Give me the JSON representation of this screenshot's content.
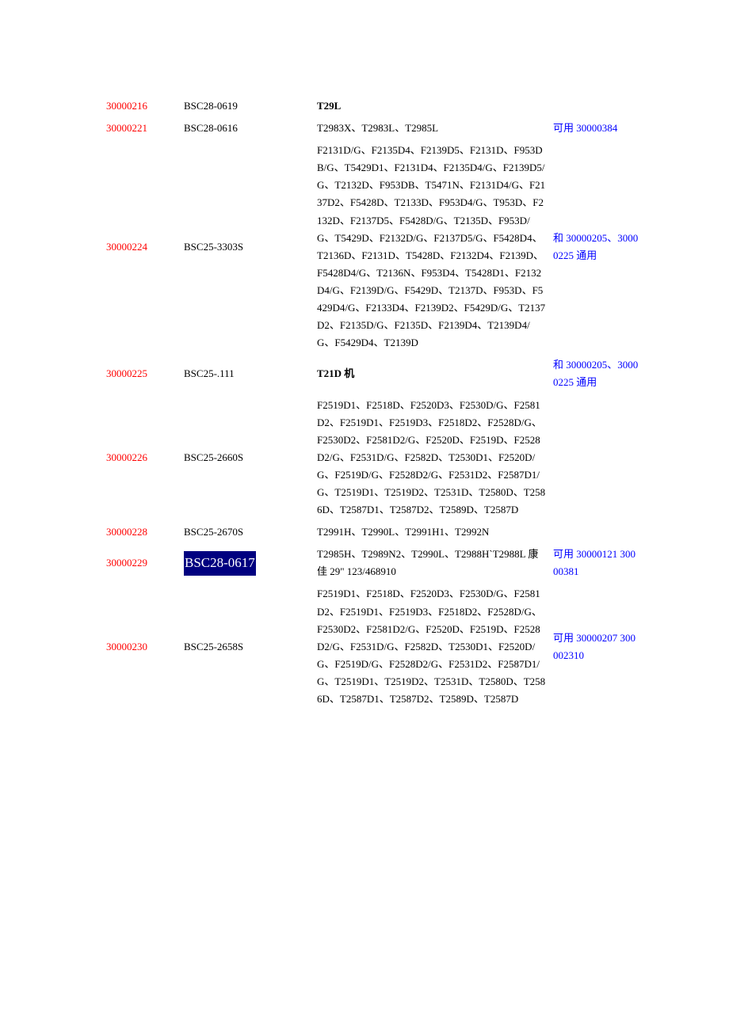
{
  "rows": [
    {
      "col1": "30000216",
      "col2": "BSC28-0619",
      "col3": "T29L",
      "col3_bold": true,
      "col4": ""
    },
    {
      "col1": "30000221",
      "col2": "BSC28-0616",
      "col3": "T2983X、T2983L、T2985L",
      "col4": "可用 30000384"
    },
    {
      "col1": "30000224",
      "col2": "BSC25-3303S",
      "col3": "F2131D/G、F2135D4、F2139D5、F2131D、F953DB/G、T5429D1、F2131D4、F2135D4/G、F2139D5/G、T2132D、F953DB、T5471N、F2131D4/G、F2137D2、F5428D、T2133D、F953D4/G、T953D、F2132D、F2137D5、F5428D/G、T2135D、F953D/G、T5429D、F2132D/G、F2137D5/G、F5428D4、T2136D、F2131D、T5428D、F2132D4、F2139D、F5428D4/G、T2136N、F953D4、T5428D1、F2132D4/G、F2139D/G、F5429D、T2137D、F953D、F5429D4/G、F2133D4、F2139D2、F5429D/G、T2137D2、F2135D/G、F2135D、F2139D4、T2139D4/G、F5429D4、T2139D",
      "col4": "和 30000205、30000225 通用"
    },
    {
      "col1": "30000225",
      "col2": "BSC25-.111",
      "col3": "T21D 机",
      "col3_bold": true,
      "col4": "和 30000205、30000225 通用"
    },
    {
      "col1": "30000226",
      "col2": "BSC25-2660S",
      "col3": "F2519D1、F2518D、F2520D3、F2530D/G、F2581D2、F2519D1、F2519D3、F2518D2、F2528D/G、F2530D2、F2581D2/G、F2520D、F2519D、F2528D2/G、F2531D/G、F2582D、T2530D1、F2520D/G、F2519D/G、F2528D2/G、F2531D2、F2587D1/G、T2519D1、T2519D2、T2531D、T2580D、T2586D、T2587D1、T2587D2、T2589D、T2587D",
      "col4": ""
    },
    {
      "col1": "30000228",
      "col2": "BSC25-2670S",
      "col3": "T2991H、T2990L、T2991H1、T2992N",
      "col4": ""
    },
    {
      "col1": "30000229",
      "col2_highlight": "BSC28-0617",
      "col3": "T2985H、T2989N2、T2990L、T2988H`T2988L 康佳 29\" 123/468910",
      "col4": "可用 30000121 30000381"
    },
    {
      "col1": "30000230",
      "col2": "BSC25-2658S",
      "col3": "F2519D1、F2518D、F2520D3、F2530D/G、F2581D2、F2519D1、F2519D3、F2518D2、F2528D/G、F2530D2、F2581D2/G、F2520D、F2519D、F2528D2/G、F2531D/G、F2582D、T2530D1、F2520D/G、F2519D/G、F2528D2/G、F2531D2、F2587D1/G、T2519D1、T2519D2、T2531D、T2580D、T2586D、T2587D1、T2587D2、T2589D、T2587D",
      "col4": "可用 30000207 300002310"
    }
  ],
  "styles": {
    "colors": {
      "code": "#ff0000",
      "note": "#0000ff",
      "text": "#000000",
      "highlight_bg": "#000080",
      "highlight_fg": "#ffffff",
      "background": "#ffffff"
    },
    "font_size": 13,
    "line_height": 1.7
  }
}
